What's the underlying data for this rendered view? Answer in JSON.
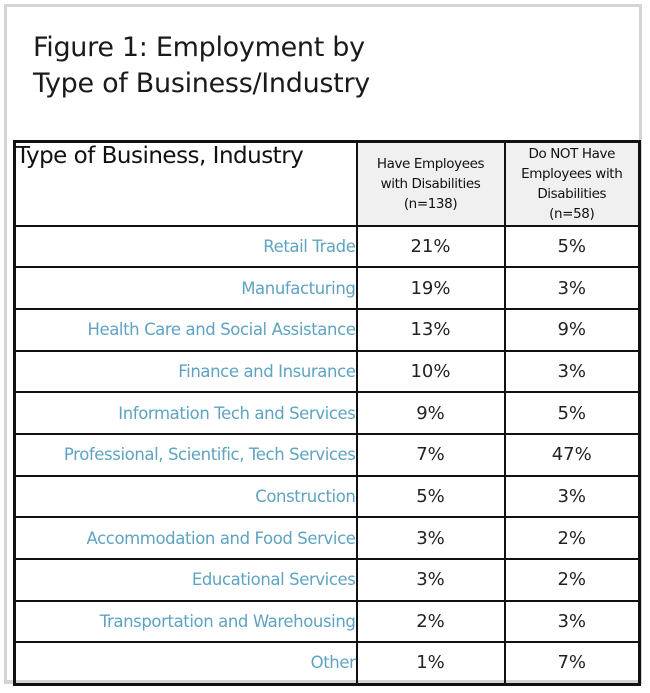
{
  "figure": {
    "title_line1": "Figure 1:  Employment by",
    "title_line2": "Type of Business/Industry"
  },
  "table": {
    "headers": {
      "type": "Type of Business, Industry",
      "have": {
        "line1": "Have Employees",
        "line2": "with Disabilities",
        "line3": "(n=138)"
      },
      "not_have": {
        "line1": "Do NOT Have",
        "line2": "Employees with",
        "line3": "Disabilities",
        "line4": "(n=58)"
      }
    },
    "rows": [
      {
        "industry": "Retail Trade",
        "have": "21%",
        "not_have": "5%"
      },
      {
        "industry": "Manufacturing",
        "have": "19%",
        "not_have": "3%"
      },
      {
        "industry": "Health Care and Social Assistance",
        "have": "13%",
        "not_have": "9%"
      },
      {
        "industry": "Finance and Insurance",
        "have": "10%",
        "not_have": "3%"
      },
      {
        "industry": "Information Tech and Services",
        "have": "9%",
        "not_have": "5%"
      },
      {
        "industry": "Professional, Scientific, Tech Services",
        "have": "7%",
        "not_have": "47%"
      },
      {
        "industry": "Construction",
        "have": "5%",
        "not_have": "3%"
      },
      {
        "industry": "Accommodation and Food Service",
        "have": "3%",
        "not_have": "2%"
      },
      {
        "industry": "Educational Services",
        "have": "3%",
        "not_have": "2%"
      },
      {
        "industry": "Transportation and Warehousing",
        "have": "2%",
        "not_have": "3%"
      },
      {
        "industry": "Other",
        "have": "1%",
        "not_have": "7%"
      }
    ]
  },
  "colors": {
    "industry_label": "#5fa3c2",
    "header_background": "#f0f0f0",
    "frame_border": "#d4d4d4"
  }
}
